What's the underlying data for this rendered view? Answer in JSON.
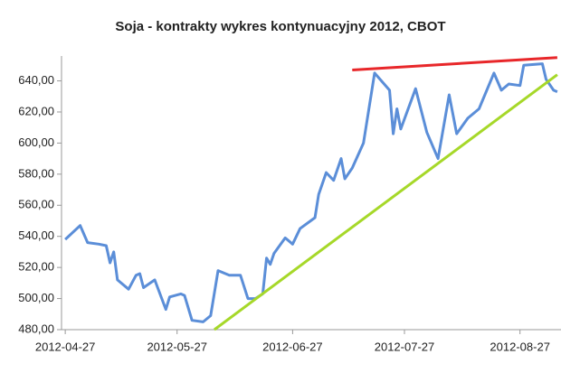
{
  "chart_data": {
    "type": "line",
    "title": "Soja - kontrakty wykres kontynuacyjny 2012, CBOT",
    "x": [
      "2012-04-27",
      "2012-05-01",
      "2012-05-03",
      "2012-05-06",
      "2012-05-08",
      "2012-05-09",
      "2012-05-10",
      "2012-05-11",
      "2012-05-14",
      "2012-05-16",
      "2012-05-17",
      "2012-05-18",
      "2012-05-21",
      "2012-05-24",
      "2012-05-25",
      "2012-05-28",
      "2012-05-29",
      "2012-05-31",
      "2012-06-03",
      "2012-06-05",
      "2012-06-07",
      "2012-06-10",
      "2012-06-13",
      "2012-06-15",
      "2012-06-17",
      "2012-06-19",
      "2012-06-20",
      "2012-06-21",
      "2012-06-22",
      "2012-06-25",
      "2012-06-27",
      "2012-06-29",
      "2012-07-03",
      "2012-07-04",
      "2012-07-06",
      "2012-07-08",
      "2012-07-10",
      "2012-07-11",
      "2012-07-13",
      "2012-07-16",
      "2012-07-19",
      "2012-07-23",
      "2012-07-24",
      "2012-07-25",
      "2012-07-26",
      "2012-07-30",
      "2012-08-02",
      "2012-08-05",
      "2012-08-08",
      "2012-08-10",
      "2012-08-13",
      "2012-08-16",
      "2012-08-20",
      "2012-08-22",
      "2012-08-24",
      "2012-08-27",
      "2012-08-28",
      "2012-09-02",
      "2012-09-03",
      "2012-09-05",
      "2012-09-06"
    ],
    "series": [
      {
        "color": "#5b8ed8",
        "values": [
          538,
          547,
          536,
          535,
          534,
          523,
          530,
          512,
          506,
          515,
          516,
          507,
          512,
          493,
          501,
          503,
          502,
          486,
          485,
          489,
          518,
          515,
          515,
          500,
          500,
          503,
          526,
          522,
          529,
          539,
          535,
          545,
          552,
          567,
          581,
          576,
          590,
          577,
          584,
          600,
          645,
          634,
          606,
          622,
          609,
          635,
          607,
          590,
          631,
          606,
          616,
          622,
          645,
          634,
          638,
          637,
          650,
          651,
          641,
          634,
          633
        ]
      }
    ],
    "trend_lines": [
      {
        "color": "#e8272a",
        "x": [
          "2012-07-13",
          "2012-09-06"
        ],
        "values": [
          647,
          655
        ]
      },
      {
        "color": "#a6d829",
        "x": [
          "2012-06-06",
          "2012-09-06"
        ],
        "values": [
          480,
          644
        ]
      }
    ],
    "xlim": [
      "2012-04-26",
      "2012-09-07"
    ],
    "xticks": [
      "2012-04-27",
      "2012-05-27",
      "2012-06-27",
      "2012-07-27",
      "2012-08-27"
    ],
    "ylim": [
      480,
      656
    ],
    "yticks": [
      {
        "value": 480,
        "label": "480,00"
      },
      {
        "value": 500,
        "label": "500,00"
      },
      {
        "value": 520,
        "label": "520,00"
      },
      {
        "value": 540,
        "label": "540,00"
      },
      {
        "value": 560,
        "label": "560,00"
      },
      {
        "value": 580,
        "label": "580,00"
      },
      {
        "value": 600,
        "label": "600,00"
      },
      {
        "value": 620,
        "label": "620,00"
      },
      {
        "value": 640,
        "label": "640,00"
      }
    ],
    "grid": false
  }
}
